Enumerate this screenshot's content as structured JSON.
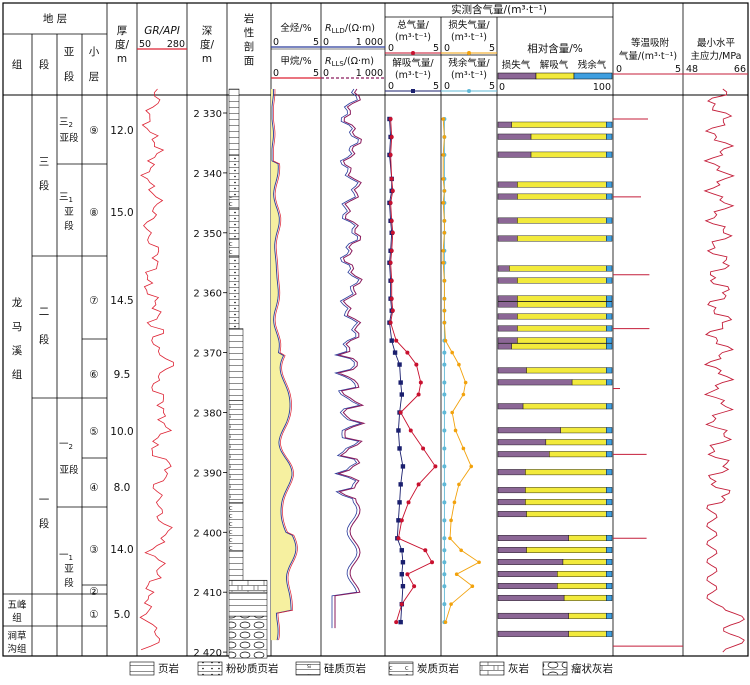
{
  "headers": {
    "strata": "地    层",
    "group": "组",
    "section": "段",
    "subsection": "亚段",
    "layer": "小层",
    "thickness_1": "厚",
    "thickness_2": "度/",
    "thickness_3": "m",
    "gr_title": "GR/API",
    "gr_min": "50",
    "gr_max": "280",
    "depth_1": "深",
    "depth_2": "度/",
    "depth_3": "m",
    "litho_1": "岩",
    "litho_2": "性",
    "litho_3": "剖",
    "litho_4": "面",
    "tg_title": "全烃/%",
    "tg_min": "0",
    "tg_max": "5",
    "ch4_title": "甲烷/%",
    "ch4_min": "0",
    "ch4_max": "5",
    "rlld_title_a": "R",
    "rlld_title_sub": "LLD",
    "rlld_title_b": "/(Ω·m)",
    "rlld_min": "0",
    "rlld_max": "1 000",
    "rlls_title_a": "R",
    "rlls_title_sub": "LLS",
    "rlls_title_b": "/(Ω·m)",
    "rlls_min": "0",
    "rlls_max": "1 000",
    "gas_main": "实测含气量/(m³·t⁻¹)",
    "total_gas_1": "总气量/",
    "total_gas_2": "(m³·t⁻¹)",
    "total_min": "0",
    "total_max": "5",
    "lost_gas_1": "损失气量/",
    "lost_gas_2": "(m³·t⁻¹)",
    "lost_min": "0",
    "lost_max": "5",
    "desorb_1": "解吸气量/",
    "desorb_2": "(m³·t⁻¹)",
    "desorb_min": "0",
    "desorb_max": "5",
    "resid_1": "残余气量/",
    "resid_2": "(m³·t⁻¹)",
    "resid_min": "0",
    "resid_max": "5",
    "rel_title": "相对含量/%",
    "rel_lost": "损失气",
    "rel_desorb": "解吸气",
    "rel_resid": "残余气",
    "rel_min": "0",
    "rel_max": "100",
    "iso_1": "等温吸附",
    "iso_2": "气量/(m³·t⁻¹)",
    "iso_min": "0",
    "iso_max": "5",
    "sh_1": "最小水平",
    "sh_2": "主应力/MPa",
    "sh_min": "48",
    "sh_max": "66"
  },
  "strat": {
    "longmaxi_1": "龙",
    "longmaxi_2": "马",
    "longmaxi_3": "溪",
    "longmaxi_4": "组",
    "wufeng_1": "五峰",
    "wufeng_2": "组",
    "jiancao_1": "涧草",
    "jiancao_2": "沟组",
    "seg3_1": "三",
    "seg3_2": "段",
    "seg2_1": "二",
    "seg2_2": "段",
    "seg1_1": "一",
    "seg1_2": "段",
    "sub32_1": "三",
    "sub32_sub": "2",
    "sub32_2": "亚段",
    "sub31_1": "三",
    "sub31_sub": "1",
    "sub31_2": "亚",
    "sub31_3": "段",
    "sub12_1": "一",
    "sub12_sub": "2",
    "sub12_2": "亚段",
    "sub11_1": "一",
    "sub11_sub": "1",
    "sub11_2": "亚",
    "sub11_3": "段"
  },
  "layers": [
    "⑨",
    "⑧",
    "⑦",
    "⑥",
    "⑤",
    "④",
    "③",
    "②",
    "①"
  ],
  "thickness": [
    "12.0",
    "15.0",
    "14.5",
    "9.5",
    "10.0",
    "8.0",
    "14.0",
    "",
    "5.0"
  ],
  "depth_ticks": [
    "2 330",
    "2 340",
    "2 350",
    "2 360",
    "2 370",
    "2 380",
    "2 390",
    "2 400",
    "2 410",
    "2 420"
  ],
  "legend": [
    {
      "name": "页岩"
    },
    {
      "name": "粉砂质页岩"
    },
    {
      "name": "硅质页岩"
    },
    {
      "name": "炭质页岩"
    },
    {
      "name": "灰岩"
    },
    {
      "name": "瘤状灰岩"
    }
  ],
  "chart_data": {
    "type": "line",
    "depth_unit": "m",
    "depth_range": [
      2326,
      2421
    ],
    "gas_samples": {
      "depth": [
        2331,
        2334,
        2337,
        2341,
        2343,
        2345,
        2348,
        2350,
        2353,
        2355,
        2358,
        2361,
        2363,
        2365,
        2368,
        2370,
        2372,
        2375,
        2377,
        2380,
        2383,
        2386,
        2389,
        2392,
        2395,
        2398,
        2401,
        2403,
        2405,
        2407,
        2409,
        2412,
        2415
      ],
      "total_gas": [
        0.5,
        0.6,
        0.5,
        0.6,
        0.7,
        0.5,
        0.6,
        0.7,
        0.6,
        0.5,
        0.6,
        0.6,
        0.7,
        0.5,
        1.0,
        2.0,
        2.8,
        3.2,
        3.0,
        1.4,
        2.3,
        3.4,
        4.5,
        3.0,
        2.1,
        1.5,
        1.2,
        3.6,
        4.2,
        2.0,
        2.6,
        1.5,
        1.0
      ],
      "lost_gas": [
        0.2,
        0.3,
        0.2,
        0.2,
        0.3,
        0.2,
        0.3,
        0.3,
        0.2,
        0.2,
        0.3,
        0.3,
        0.3,
        0.3,
        0.4,
        1.0,
        1.6,
        2.2,
        2.0,
        1.0,
        1.3,
        2.0,
        2.7,
        1.6,
        1.2,
        0.9,
        0.8,
        1.8,
        3.4,
        1.4,
        2.8,
        0.9,
        0.4
      ],
      "desorbed_gas": [
        0.4,
        0.5,
        0.4,
        0.6,
        0.6,
        0.4,
        0.5,
        0.6,
        0.5,
        0.4,
        0.5,
        0.5,
        0.6,
        0.4,
        0.6,
        0.9,
        1.3,
        1.4,
        1.5,
        1.3,
        1.2,
        1.3,
        1.6,
        1.4,
        1.3,
        1.2,
        1.1,
        1.5,
        1.6,
        1.5,
        1.6,
        1.5,
        1.4
      ],
      "residual_gas": [
        0.3,
        0.3,
        0.3,
        0.3,
        0.3,
        0.3,
        0.3,
        0.3,
        0.3,
        0.3,
        0.3,
        0.3,
        0.3,
        0.3,
        0.3,
        0.3,
        0.3,
        0.3,
        0.3,
        0.3,
        0.3,
        0.3,
        0.3,
        0.3,
        0.3,
        0.3,
        0.3,
        0.3,
        0.3,
        0.3,
        0.3,
        0.3,
        0.3
      ]
    },
    "relative_content": {
      "depth": [
        2332,
        2334,
        2337,
        2342,
        2344,
        2348,
        2351,
        2356,
        2358,
        2361,
        2362,
        2364,
        2366,
        2368,
        2369,
        2373,
        2375,
        2379,
        2383,
        2385,
        2387,
        2390,
        2393,
        2395,
        2397,
        2401,
        2403,
        2405,
        2407,
        2409,
        2411,
        2414,
        2417
      ],
      "lost": [
        12,
        29,
        29,
        17,
        17,
        17,
        17,
        10,
        17,
        17,
        17,
        17,
        17,
        17,
        12,
        25,
        65,
        22,
        55,
        42,
        45,
        24,
        24,
        24,
        25,
        62,
        25,
        57,
        52,
        52,
        58,
        62,
        62
      ],
      "desorbed": [
        83,
        66,
        66,
        78,
        78,
        78,
        78,
        85,
        78,
        78,
        78,
        78,
        78,
        78,
        83,
        70,
        30,
        73,
        40,
        53,
        50,
        71,
        71,
        71,
        70,
        33,
        70,
        38,
        43,
        43,
        37,
        33,
        33
      ],
      "residual": [
        5,
        5,
        5,
        5,
        5,
        5,
        5,
        5,
        5,
        5,
        5,
        5,
        5,
        5,
        5,
        5,
        5,
        5,
        5,
        5,
        5,
        5,
        5,
        5,
        5,
        5,
        5,
        5,
        5,
        5,
        5,
        5,
        5
      ]
    },
    "isotherm_adsorption": {
      "depth": [
        2331,
        2344,
        2357,
        2366,
        2376,
        2387,
        2401,
        2419
      ],
      "value": [
        2.5,
        2.0,
        2.6,
        2.6,
        0.5,
        2.4,
        2.4,
        5.0
      ]
    },
    "log_curves": [
      "GR",
      "全烃",
      "甲烷",
      "RLLD",
      "RLLS",
      "最小水平主应力"
    ]
  }
}
